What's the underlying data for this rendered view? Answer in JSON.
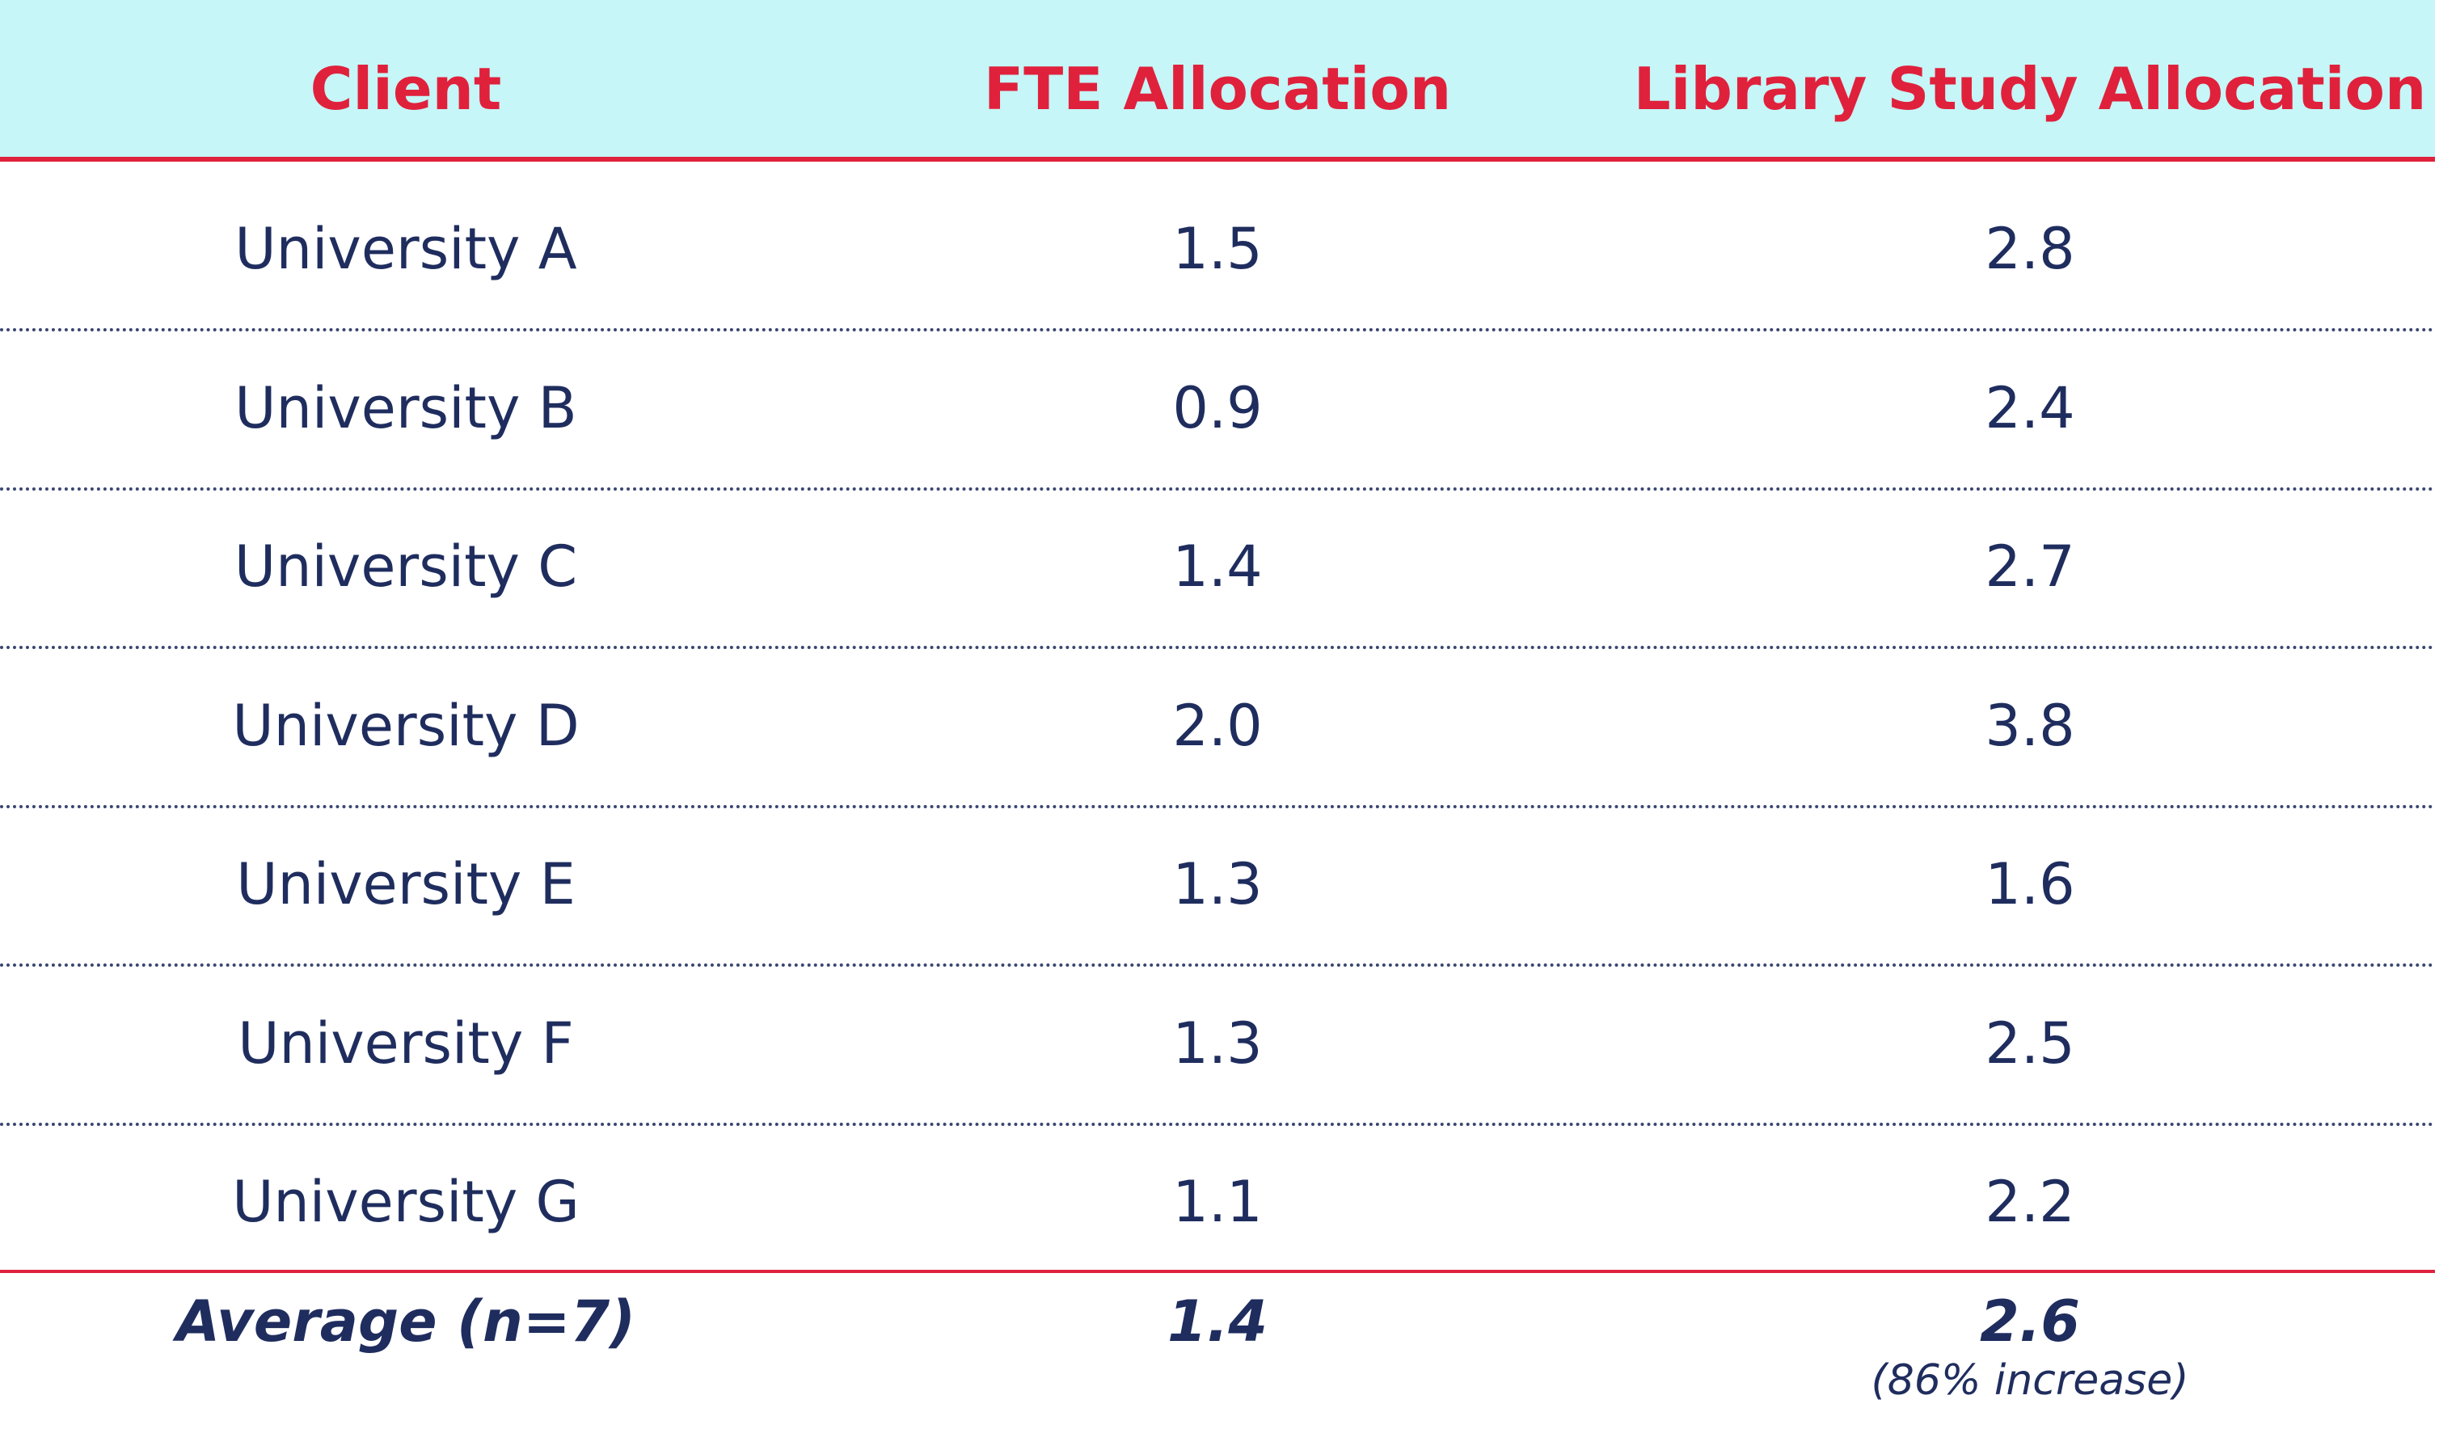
{
  "table": {
    "header": [
      "Client",
      "FTE Allocation",
      "Library Study Allocation"
    ],
    "rows": [
      [
        "University A",
        "1.5",
        "2.8"
      ],
      [
        "University B",
        "0.9",
        "2.4"
      ],
      [
        "University C",
        "1.4",
        "2.7"
      ],
      [
        "University D",
        "2.0",
        "3.8"
      ],
      [
        "University E",
        "1.3",
        "1.6"
      ],
      [
        "University F",
        "1.3",
        "2.5"
      ],
      [
        "University G",
        "1.1",
        "2.2"
      ]
    ],
    "footer": {
      "cells": [
        "Average (n=7)",
        "1.4",
        "2.6"
      ],
      "note": "(86% increase)"
    }
  }
}
